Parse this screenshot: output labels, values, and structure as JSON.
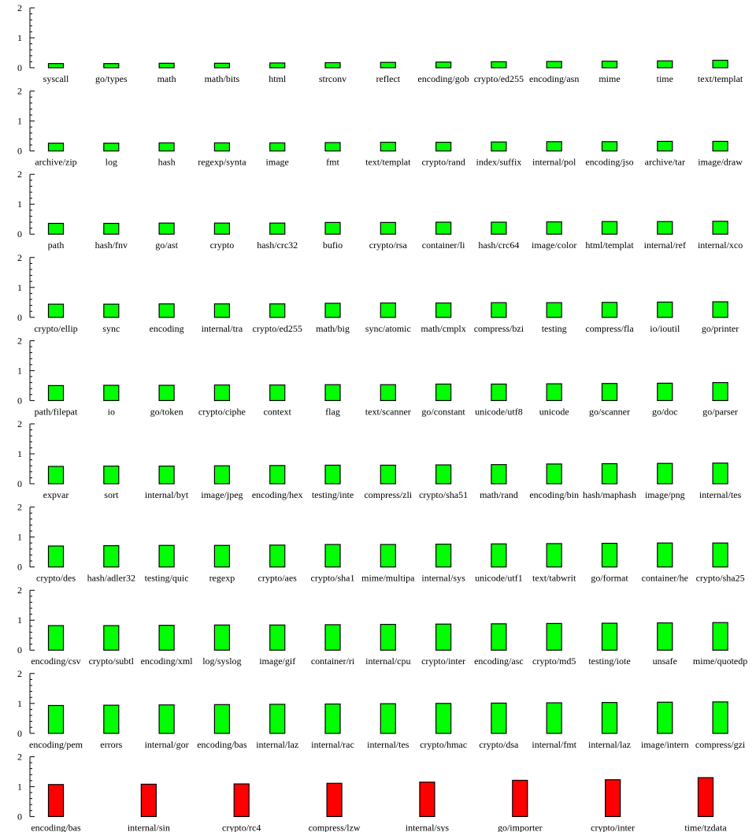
{
  "chart_data": {
    "type": "bar",
    "colors": {
      "default": "#00ff00",
      "highlight": "#ff0000"
    },
    "ylim": [
      0,
      2
    ],
    "yticks": [
      "0",
      "1",
      "2"
    ],
    "panels": [
      {
        "categories": [
          "syscall",
          "go/types",
          "math",
          "math/bits",
          "html",
          "strconv",
          "reflect",
          "encoding/gob",
          "crypto/ed255",
          "encoding/asn",
          "mime",
          "time",
          "text/templat"
        ],
        "values": [
          0.14,
          0.14,
          0.15,
          0.15,
          0.16,
          0.17,
          0.18,
          0.19,
          0.2,
          0.21,
          0.22,
          0.23,
          0.25
        ]
      },
      {
        "categories": [
          "archive/zip",
          "log",
          "hash",
          "regexp/synta",
          "image",
          "fmt",
          "text/templat",
          "crypto/rand",
          "index/suffix",
          "internal/pol",
          "encoding/jso",
          "archive/tar",
          "image/draw"
        ],
        "values": [
          0.26,
          0.26,
          0.27,
          0.27,
          0.27,
          0.28,
          0.29,
          0.29,
          0.3,
          0.31,
          0.31,
          0.32,
          0.32
        ]
      },
      {
        "categories": [
          "path",
          "hash/fnv",
          "go/ast",
          "crypto",
          "hash/crc32",
          "bufio",
          "crypto/rsa",
          "container/li",
          "hash/crc64",
          "image/color",
          "html/templat",
          "internal/ref",
          "internal/xco"
        ],
        "values": [
          0.36,
          0.36,
          0.37,
          0.37,
          0.37,
          0.39,
          0.39,
          0.4,
          0.4,
          0.41,
          0.42,
          0.42,
          0.43
        ]
      },
      {
        "categories": [
          "crypto/ellip",
          "sync",
          "encoding",
          "internal/tra",
          "crypto/ed255",
          "math/big",
          "sync/atomic",
          "math/cmplx",
          "compress/bzi",
          "testing",
          "compress/fla",
          "io/ioutil",
          "go/printer"
        ],
        "values": [
          0.44,
          0.44,
          0.45,
          0.45,
          0.45,
          0.47,
          0.48,
          0.48,
          0.49,
          0.49,
          0.5,
          0.51,
          0.52
        ]
      },
      {
        "categories": [
          "path/filepat",
          "io",
          "go/token",
          "crypto/ciphe",
          "context",
          "flag",
          "text/scanner",
          "go/constant",
          "unicode/utf8",
          "unicode",
          "go/scanner",
          "go/doc",
          "go/parser"
        ],
        "values": [
          0.5,
          0.51,
          0.51,
          0.52,
          0.52,
          0.53,
          0.53,
          0.55,
          0.55,
          0.56,
          0.57,
          0.58,
          0.6
        ]
      },
      {
        "categories": [
          "expvar",
          "sort",
          "internal/byt",
          "image/jpeg",
          "encoding/hex",
          "testing/inte",
          "compress/zli",
          "crypto/sha51",
          "math/rand",
          "encoding/bin",
          "hash/maphash",
          "image/png",
          "internal/tes"
        ],
        "values": [
          0.58,
          0.59,
          0.59,
          0.6,
          0.61,
          0.62,
          0.62,
          0.63,
          0.64,
          0.66,
          0.67,
          0.68,
          0.69
        ]
      },
      {
        "categories": [
          "crypto/des",
          "hash/adler32",
          "testing/quic",
          "regexp",
          "crypto/aes",
          "crypto/sha1",
          "mime/multipa",
          "internal/sys",
          "unicode/utf1",
          "text/tabwrit",
          "go/format",
          "container/he",
          "crypto/sha25"
        ],
        "values": [
          0.7,
          0.71,
          0.72,
          0.72,
          0.73,
          0.75,
          0.75,
          0.76,
          0.77,
          0.78,
          0.79,
          0.8,
          0.8
        ]
      },
      {
        "categories": [
          "encoding/csv",
          "crypto/subtl",
          "encoding/xml",
          "log/syslog",
          "image/gif",
          "container/ri",
          "internal/cpu",
          "crypto/inter",
          "encoding/asc",
          "crypto/md5",
          "testing/iote",
          "unsafe",
          "mime/quotedp"
        ],
        "values": [
          0.82,
          0.82,
          0.83,
          0.84,
          0.84,
          0.85,
          0.86,
          0.87,
          0.88,
          0.89,
          0.9,
          0.91,
          0.92
        ]
      },
      {
        "categories": [
          "encoding/pem",
          "errors",
          "internal/gor",
          "encoding/bas",
          "internal/laz",
          "internal/rac",
          "internal/tes",
          "crypto/hmac",
          "crypto/dsa",
          "internal/fmt",
          "internal/laz",
          "image/intern",
          "compress/gzi"
        ],
        "values": [
          0.93,
          0.94,
          0.95,
          0.96,
          0.97,
          0.98,
          0.99,
          1.0,
          1.01,
          1.02,
          1.03,
          1.04,
          1.05
        ]
      },
      {
        "categories": [
          "encoding/bas",
          "internal/sin",
          "crypto/rc4",
          "compress/lzw",
          "internal/sys",
          "go/importer",
          "crypto/inter",
          "time/tzdata"
        ],
        "values": [
          1.07,
          1.08,
          1.09,
          1.11,
          1.15,
          1.21,
          1.23,
          1.3
        ],
        "highlight": true
      }
    ]
  }
}
